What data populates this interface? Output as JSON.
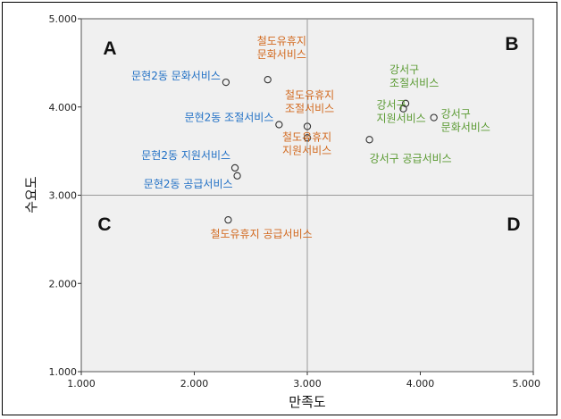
{
  "chart_data": {
    "type": "scatter",
    "xlabel": "만족도",
    "ylabel": "수요도",
    "xlim": [
      1,
      5
    ],
    "ylim": [
      1,
      5
    ],
    "x_ticks": [
      "1.000",
      "2.000",
      "3.000",
      "4.000",
      "5.000"
    ],
    "y_ticks": [
      "1.000",
      "2.000",
      "3.000",
      "4.000",
      "5.000"
    ],
    "reference_lines": {
      "x": 3,
      "y": 3
    },
    "grid": false,
    "quadrants": [
      {
        "id": "A",
        "label": "A",
        "pos": "top-left"
      },
      {
        "id": "B",
        "label": "B",
        "pos": "top-right"
      },
      {
        "id": "C",
        "label": "C",
        "pos": "bottom-left"
      },
      {
        "id": "D",
        "label": "D",
        "pos": "bottom-right"
      }
    ],
    "groups": {
      "munhyeon": {
        "color": "#1f6fc5"
      },
      "railway": {
        "color": "#d2691e"
      },
      "gangseo": {
        "color": "#5a9a32"
      }
    },
    "points": [
      {
        "x": 2.28,
        "y": 4.28,
        "label": [
          "문현2동 문화서비스"
        ],
        "group": "munhyeon"
      },
      {
        "x": 2.75,
        "y": 3.8,
        "label": [
          "문현2동 조절서비스"
        ],
        "group": "munhyeon"
      },
      {
        "x": 2.36,
        "y": 3.31,
        "label": [
          "문현2동 지원서비스"
        ],
        "group": "munhyeon"
      },
      {
        "x": 2.38,
        "y": 3.22,
        "label": [
          "문현2동 공급서비스"
        ],
        "group": "munhyeon"
      },
      {
        "x": 2.65,
        "y": 4.31,
        "label": [
          "철도유휴지",
          "문화서비스"
        ],
        "group": "railway"
      },
      {
        "x": 3.0,
        "y": 3.78,
        "label": [
          "철도유휴지",
          "조절서비스"
        ],
        "group": "railway"
      },
      {
        "x": 3.0,
        "y": 3.65,
        "label": [
          "철도유휴지",
          "지원서비스"
        ],
        "group": "railway"
      },
      {
        "x": 2.3,
        "y": 2.72,
        "label": [
          "철도유휴지 공급서비스"
        ],
        "group": "railway"
      },
      {
        "x": 3.87,
        "y": 4.04,
        "label": [
          "강서구",
          "조절서비스"
        ],
        "group": "gangseo"
      },
      {
        "x": 3.85,
        "y": 3.98,
        "label": [
          "강서구",
          "지원서비스"
        ],
        "group": "gangseo"
      },
      {
        "x": 4.12,
        "y": 3.88,
        "label": [
          "강서구",
          "문화서비스"
        ],
        "group": "gangseo"
      },
      {
        "x": 3.55,
        "y": 3.63,
        "label": [
          "강서구 공급서비스"
        ],
        "group": "gangseo"
      }
    ]
  }
}
